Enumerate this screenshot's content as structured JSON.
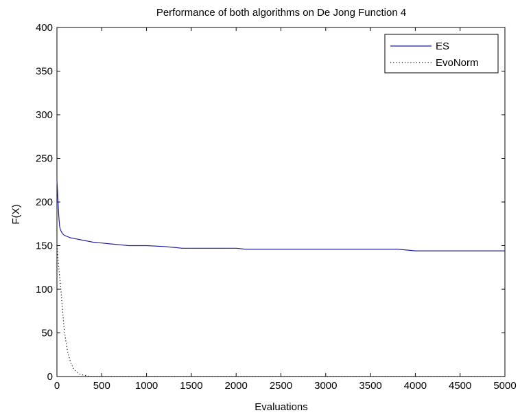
{
  "chart_data": {
    "type": "line",
    "title": "Performance of both algorithms on De Jong Function 4",
    "xlabel": "Evaluations",
    "ylabel": "F(X)",
    "xlim": [
      0,
      5000
    ],
    "ylim": [
      0,
      400
    ],
    "xticks": [
      0,
      500,
      1000,
      1500,
      2000,
      2500,
      3000,
      3500,
      4000,
      4500,
      5000
    ],
    "yticks": [
      0,
      50,
      100,
      150,
      200,
      250,
      300,
      350,
      400
    ],
    "grid": false,
    "legend_position": "top-right",
    "series": [
      {
        "name": "ES",
        "color": "#1f1f9e",
        "style": "solid",
        "x": [
          0,
          10,
          20,
          30,
          40,
          50,
          60,
          80,
          100,
          150,
          200,
          300,
          400,
          500,
          600,
          700,
          800,
          1000,
          1200,
          1300,
          1400,
          1600,
          2000,
          2100,
          2500,
          3000,
          3500,
          3800,
          3900,
          4000,
          4500,
          5000
        ],
        "y": [
          225,
          205,
          185,
          172,
          168,
          166,
          164,
          162,
          161,
          159,
          158,
          156,
          154,
          153,
          152,
          151,
          150,
          150,
          149,
          148,
          147,
          147,
          147,
          146,
          146,
          146,
          146,
          146,
          145,
          144,
          144,
          144
        ]
      },
      {
        "name": "EvoNorm",
        "color": "#000000",
        "style": "dotted",
        "x": [
          0,
          20,
          40,
          60,
          80,
          100,
          120,
          150,
          180,
          200,
          250,
          300,
          350,
          400,
          500,
          1000,
          2000,
          3000,
          4000,
          5000
        ],
        "y": [
          150,
          125,
          105,
          80,
          55,
          40,
          28,
          17,
          10,
          7,
          3,
          1.5,
          0.5,
          0,
          0,
          0,
          0,
          0,
          0,
          0
        ]
      }
    ]
  }
}
